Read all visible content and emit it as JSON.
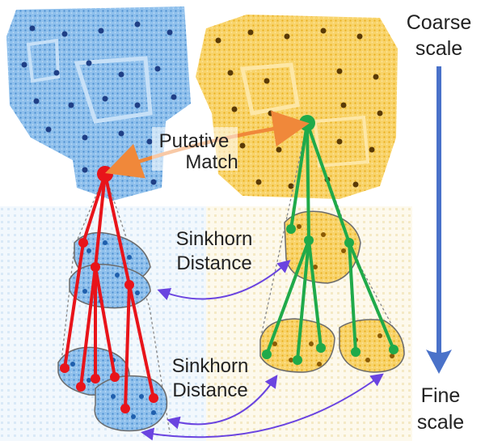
{
  "labels": {
    "putative_line1": "Putative",
    "putative_line2": "Match",
    "sinkhorn_top_line1": "Sinkhorn",
    "sinkhorn_top_line2": "Distance",
    "sinkhorn_bottom_line1": "Sinkhorn",
    "sinkhorn_bottom_line2": "Distance",
    "coarse_line1": "Coarse",
    "coarse_line2": "scale",
    "fine_line1": "Fine",
    "fine_line2": "scale"
  },
  "colors": {
    "source_cloud": "#6aa3d8",
    "target_cloud": "#f5c13a",
    "source_tree": "#e8141a",
    "target_tree": "#1faa4a",
    "putative_arrow": "#f0883a",
    "sinkhorn_arrow": "#6a44e0",
    "scale_arrow": "#4a72c9"
  },
  "icons": {
    "source_point_cloud": "scene-point-cloud-blue",
    "target_point_cloud": "scene-point-cloud-yellow"
  }
}
